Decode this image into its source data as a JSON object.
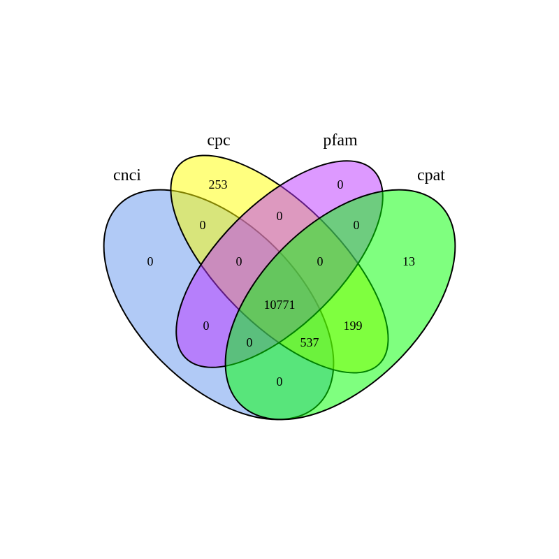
{
  "chart_data": {
    "type": "venn",
    "sets": [
      {
        "name": "cnci",
        "color": "#6495ED"
      },
      {
        "name": "cpc",
        "color": "#FFFF00"
      },
      {
        "name": "pfam",
        "color": "#BB33FF"
      },
      {
        "name": "cpat",
        "color": "#00FF00"
      }
    ],
    "regions": [
      {
        "sets": [
          "cnci"
        ],
        "value": "0"
      },
      {
        "sets": [
          "cpc"
        ],
        "value": "253"
      },
      {
        "sets": [
          "pfam"
        ],
        "value": "0"
      },
      {
        "sets": [
          "cpat"
        ],
        "value": "13"
      },
      {
        "sets": [
          "cnci",
          "cpc"
        ],
        "value": "0"
      },
      {
        "sets": [
          "cpc",
          "pfam"
        ],
        "value": "0"
      },
      {
        "sets": [
          "pfam",
          "cpat"
        ],
        "value": "0"
      },
      {
        "sets": [
          "cnci",
          "pfam"
        ],
        "value": "0"
      },
      {
        "sets": [
          "cpc",
          "cpat"
        ],
        "value": "199"
      },
      {
        "sets": [
          "cnci",
          "cpat"
        ],
        "value": "0"
      },
      {
        "sets": [
          "cnci",
          "cpc",
          "pfam"
        ],
        "value": "0"
      },
      {
        "sets": [
          "cpc",
          "pfam",
          "cpat"
        ],
        "value": "0"
      },
      {
        "sets": [
          "cnci",
          "pfam",
          "cpat"
        ],
        "value": "0"
      },
      {
        "sets": [
          "cnci",
          "cpc",
          "cpat"
        ],
        "value": "537"
      },
      {
        "sets": [
          "cnci",
          "cpc",
          "pfam",
          "cpat"
        ],
        "value": "10771"
      }
    ]
  }
}
